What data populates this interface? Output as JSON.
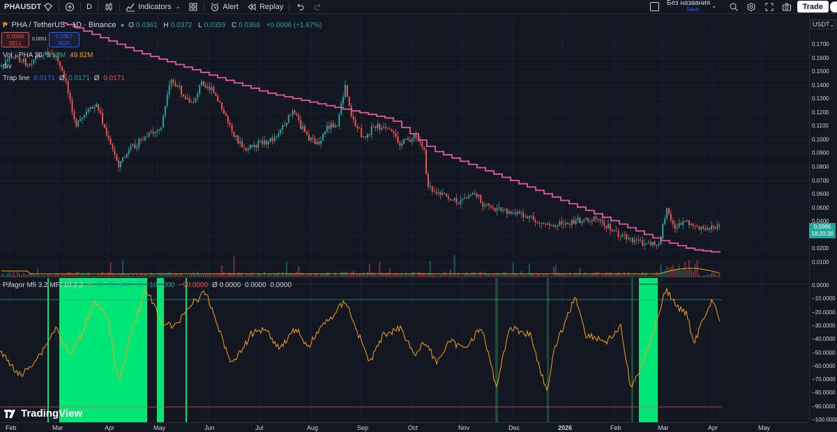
{
  "toolbar": {
    "symbol": "PHAUSDT",
    "interval": "D",
    "indicators_label": "Indicators",
    "alert_label": "Alert",
    "replay_label": "Replay",
    "layout_name": "Без названия",
    "save_label": "Save",
    "trade_label": "Trade"
  },
  "legend": {
    "title": "PHA / TetherUS · 1D · Binance",
    "o_label": "O",
    "o_value": "0.0361",
    "h_label": "H",
    "h_value": "0.0372",
    "l_label": "L",
    "l_value": "0.0359",
    "c_label": "C",
    "c_value": "0.0366",
    "change": "+0.0006 (+1.67%)",
    "sell_price": "0.0366",
    "sell_label": "SELL",
    "spread": "0.0001",
    "buy_price": "0.0367",
    "buy_label": "BUY",
    "vol_label": "Vol · PHA 20",
    "vol_value_1": "2.58M",
    "vol_value_2": "49.82M",
    "div_label": "div",
    "trap_label": "Trap line",
    "trap_v1": "0.0171",
    "trap_sym2": "Ø",
    "trap_v2": "0.0171",
    "trap_sym3": "Ø",
    "trap_v3": "0.0171"
  },
  "mfi_legend": {
    "name": "Pifagor Mfi 3.2 MFI 10 2 2",
    "v1": "Ø −31.6400",
    "v2": "Ø −10.0000",
    "v3": "−90.0000",
    "v4": "Ø 0.0000",
    "v5": "0.0000",
    "v6": "0.0000"
  },
  "price_axis": {
    "currency": "USDT",
    "labels": [
      "0.1700",
      "0.1600",
      "0.1500",
      "0.1400",
      "0.1300",
      "0.1200",
      "0.1100",
      "0.1000",
      "0.0900",
      "0.0800",
      "0.0700",
      "0.0600",
      "0.0500",
      "0.0400",
      "0.0300",
      "0.0200",
      "0.0100"
    ],
    "last_price": "0.0366",
    "countdown": "18:20:38"
  },
  "mfi_axis": {
    "labels": [
      "0.0000",
      "−10.0000",
      "−20.0000",
      "−30.0000",
      "−40.0000",
      "−50.0000",
      "−60.0000",
      "−70.0000",
      "−80.0000",
      "−90.0000",
      "−100.0000"
    ]
  },
  "time_axis": {
    "labels": [
      "Feb",
      "Mar",
      "Apr",
      "May",
      "Jun",
      "Jul",
      "Aug",
      "Sep",
      "Oct",
      "Nov",
      "Dec",
      "2026",
      "Feb",
      "Mar",
      "Apr",
      "May"
    ]
  },
  "watermark": "TradingView",
  "colors": {
    "up": "#26a69a",
    "down": "#ef5350",
    "trap_line": "#e55b9b",
    "mfi_line": "#f7a21b",
    "highlight": "#00e676",
    "background": "#131722"
  }
}
